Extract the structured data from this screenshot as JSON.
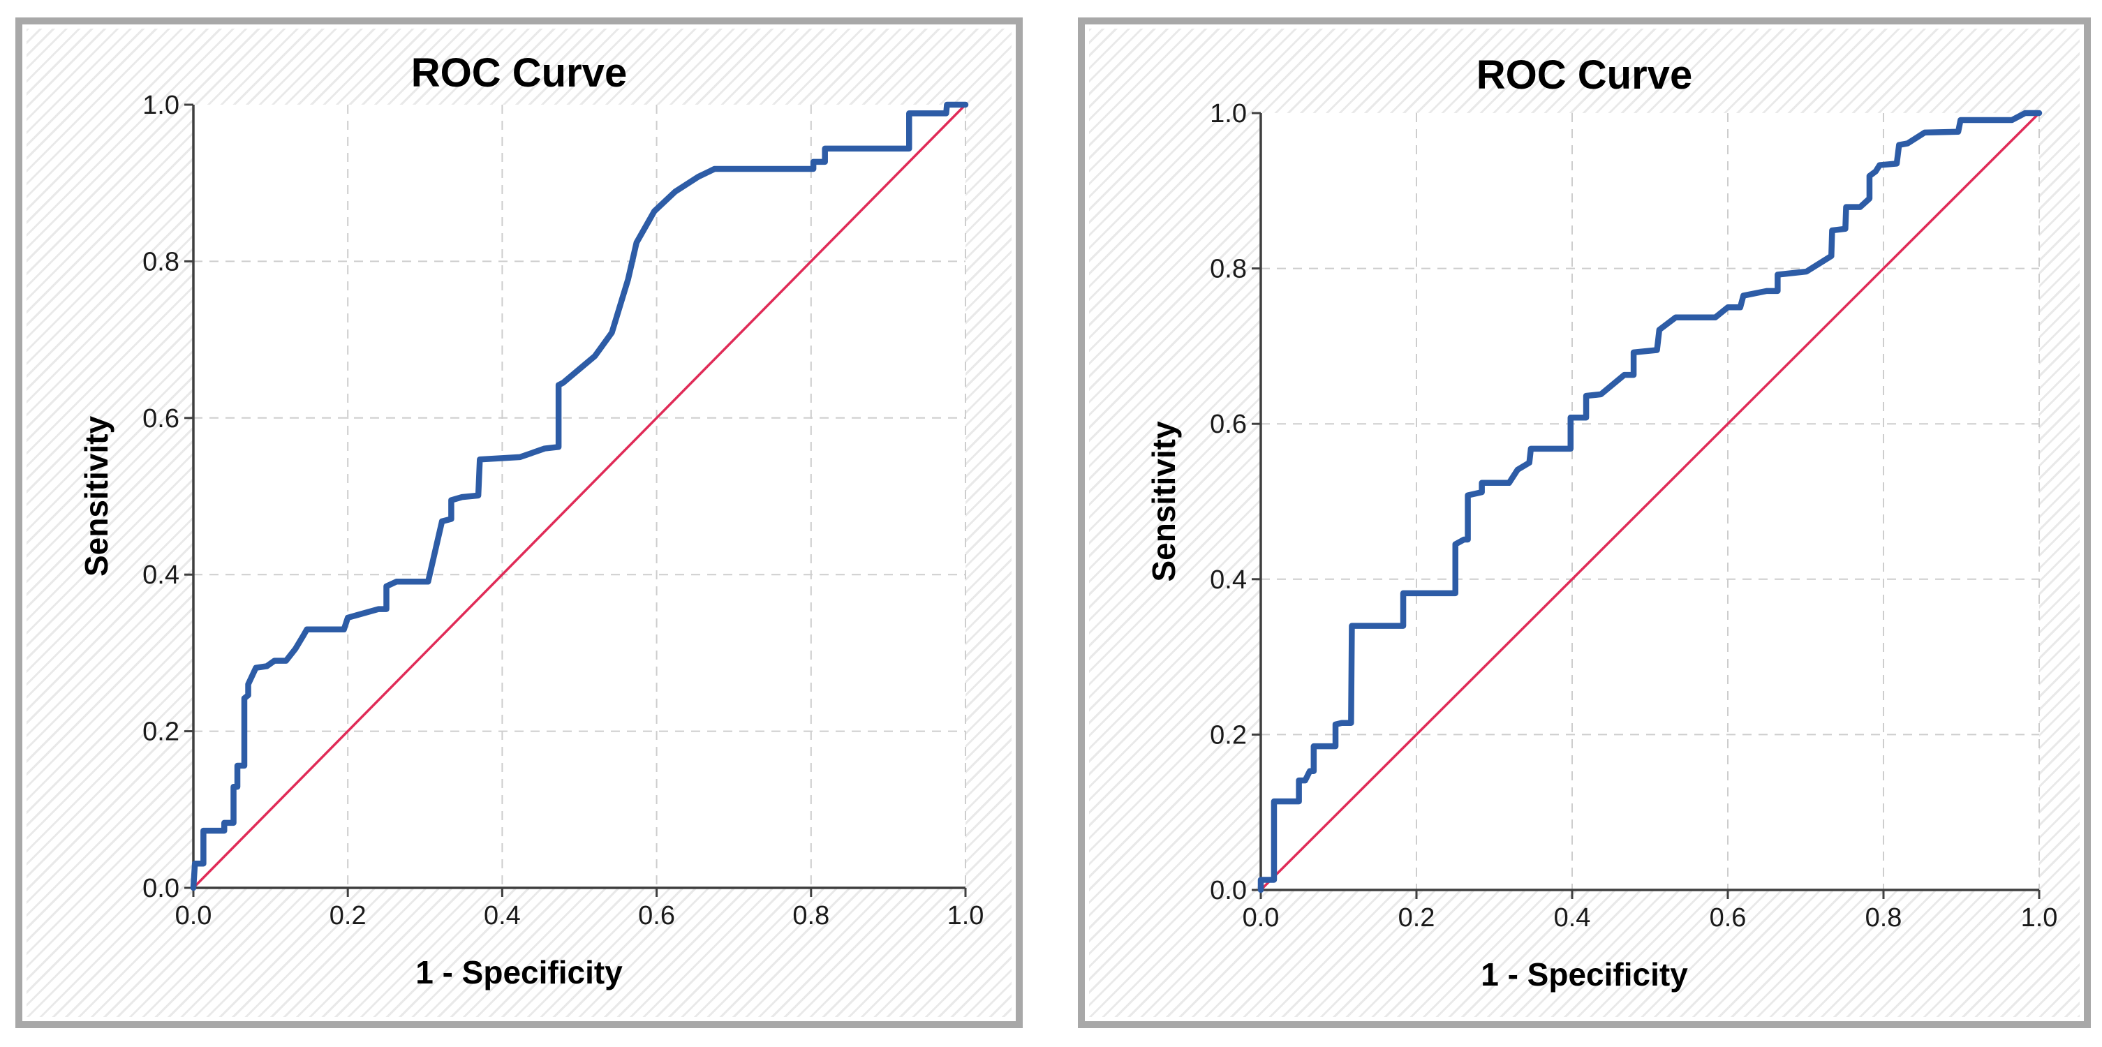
{
  "page": {
    "background": "#ffffff",
    "description_left_title": "ROC Curve",
    "description_right_title": "ROC Curve"
  },
  "colors": {
    "roc_curve_blue": "#2D5CA6",
    "reference_line_red": "#E02B57",
    "grid_dashed_gray": "#CDCDCD",
    "axis_dark_gray": "#3F3F3F",
    "frame_gray": "#A8A8A8",
    "hatch_light_gray": "#E9E9E9",
    "plot_background": "#FFFFFF"
  },
  "chart_data": [
    {
      "type": "line",
      "subtype": "roc",
      "title": "ROC Curve",
      "xlabel": "1 - Specificity",
      "ylabel": "Sensitivity",
      "xlim": [
        0.0,
        1.0
      ],
      "ylim": [
        0.0,
        1.0
      ],
      "xtick_labels": [
        "0.0",
        "0.2",
        "0.4",
        "0.6",
        "0.8",
        "1.0"
      ],
      "ytick_labels": [
        "0.0",
        "0.2",
        "0.4",
        "0.6",
        "0.8",
        "1.0"
      ],
      "grid": "dashed",
      "legend": "none",
      "series": [
        {
          "name": "ROC curve",
          "color": "#2D5CA6",
          "points": [
            [
              0,
              0
            ],
            [
              0.002,
              0.031
            ],
            [
              0.013,
              0.031
            ],
            [
              0.013,
              0.073
            ],
            [
              0.04,
              0.073
            ],
            [
              0.04,
              0.083
            ],
            [
              0.052,
              0.083
            ],
            [
              0.052,
              0.129
            ],
            [
              0.057,
              0.129
            ],
            [
              0.057,
              0.156
            ],
            [
              0.066,
              0.156
            ],
            [
              0.066,
              0.242
            ],
            [
              0.071,
              0.246
            ],
            [
              0.071,
              0.26
            ],
            [
              0.081,
              0.281
            ],
            [
              0.095,
              0.283
            ],
            [
              0.105,
              0.29
            ],
            [
              0.12,
              0.29
            ],
            [
              0.132,
              0.305
            ],
            [
              0.143,
              0.323
            ],
            [
              0.147,
              0.33
            ],
            [
              0.195,
              0.33
            ],
            [
              0.2,
              0.345
            ],
            [
              0.24,
              0.356
            ],
            [
              0.25,
              0.356
            ],
            [
              0.25,
              0.385
            ],
            [
              0.263,
              0.391
            ],
            [
              0.304,
              0.391
            ],
            [
              0.322,
              0.468
            ],
            [
              0.334,
              0.471
            ],
            [
              0.334,
              0.495
            ],
            [
              0.348,
              0.499
            ],
            [
              0.369,
              0.501
            ],
            [
              0.371,
              0.547
            ],
            [
              0.423,
              0.55
            ],
            [
              0.455,
              0.561
            ],
            [
              0.473,
              0.563
            ],
            [
              0.473,
              0.642
            ],
            [
              0.479,
              0.645
            ],
            [
              0.52,
              0.679
            ],
            [
              0.542,
              0.709
            ],
            [
              0.563,
              0.777
            ],
            [
              0.574,
              0.824
            ],
            [
              0.597,
              0.864
            ],
            [
              0.624,
              0.889
            ],
            [
              0.654,
              0.908
            ],
            [
              0.675,
              0.918
            ],
            [
              0.803,
              0.918
            ],
            [
              0.803,
              0.927
            ],
            [
              0.818,
              0.927
            ],
            [
              0.818,
              0.944
            ],
            [
              0.927,
              0.944
            ],
            [
              0.927,
              0.989
            ],
            [
              0.975,
              0.989
            ],
            [
              0.976,
              1
            ],
            [
              1,
              1
            ]
          ]
        },
        {
          "name": "Reference line",
          "color": "#E02B57",
          "points": [
            [
              0,
              0
            ],
            [
              1,
              1
            ]
          ]
        }
      ]
    },
    {
      "type": "line",
      "subtype": "roc",
      "title": "ROC Curve",
      "xlabel": "1 - Specificity",
      "ylabel": "Sensitivity",
      "xlim": [
        0.0,
        1.0
      ],
      "ylim": [
        0.0,
        1.0
      ],
      "xtick_labels": [
        "0.0",
        "0.2",
        "0.4",
        "0.6",
        "0.8",
        "1.0"
      ],
      "ytick_labels": [
        "0.0",
        "0.2",
        "0.4",
        "0.6",
        "0.8",
        "1.0"
      ],
      "grid": "dashed",
      "legend": "none",
      "series": [
        {
          "name": "ROC curve",
          "color": "#2D5CA6",
          "points": [
            [
              0,
              0
            ],
            [
              0,
              0.013
            ],
            [
              0.017,
              0.013
            ],
            [
              0.017,
              0.114
            ],
            [
              0.049,
              0.114
            ],
            [
              0.049,
              0.141
            ],
            [
              0.057,
              0.141
            ],
            [
              0.063,
              0.153
            ],
            [
              0.068,
              0.153
            ],
            [
              0.068,
              0.185
            ],
            [
              0.096,
              0.185
            ],
            [
              0.096,
              0.213
            ],
            [
              0.104,
              0.215
            ],
            [
              0.116,
              0.215
            ],
            [
              0.117,
              0.34
            ],
            [
              0.183,
              0.34
            ],
            [
              0.183,
              0.382
            ],
            [
              0.25,
              0.382
            ],
            [
              0.25,
              0.445
            ],
            [
              0.261,
              0.451
            ],
            [
              0.266,
              0.451
            ],
            [
              0.266,
              0.508
            ],
            [
              0.284,
              0.512
            ],
            [
              0.284,
              0.524
            ],
            [
              0.319,
              0.524
            ],
            [
              0.33,
              0.541
            ],
            [
              0.345,
              0.55
            ],
            [
              0.347,
              0.568
            ],
            [
              0.398,
              0.568
            ],
            [
              0.398,
              0.608
            ],
            [
              0.418,
              0.608
            ],
            [
              0.418,
              0.636
            ],
            [
              0.437,
              0.638
            ],
            [
              0.467,
              0.663
            ],
            [
              0.479,
              0.663
            ],
            [
              0.479,
              0.692
            ],
            [
              0.509,
              0.695
            ],
            [
              0.512,
              0.721
            ],
            [
              0.533,
              0.737
            ],
            [
              0.584,
              0.737
            ],
            [
              0.6,
              0.75
            ],
            [
              0.616,
              0.75
            ],
            [
              0.62,
              0.765
            ],
            [
              0.65,
              0.771
            ],
            [
              0.664,
              0.771
            ],
            [
              0.664,
              0.792
            ],
            [
              0.701,
              0.796
            ],
            [
              0.733,
              0.816
            ],
            [
              0.734,
              0.849
            ],
            [
              0.751,
              0.851
            ],
            [
              0.752,
              0.879
            ],
            [
              0.77,
              0.879
            ],
            [
              0.782,
              0.89
            ],
            [
              0.782,
              0.919
            ],
            [
              0.79,
              0.925
            ],
            [
              0.795,
              0.933
            ],
            [
              0.817,
              0.935
            ],
            [
              0.82,
              0.959
            ],
            [
              0.831,
              0.961
            ],
            [
              0.853,
              0.975
            ],
            [
              0.896,
              0.976
            ],
            [
              0.899,
              0.991
            ],
            [
              0.965,
              0.991
            ],
            [
              0.982,
              1
            ],
            [
              1,
              1
            ]
          ]
        },
        {
          "name": "Reference line",
          "color": "#E02B57",
          "points": [
            [
              0,
              0
            ],
            [
              1,
              1
            ]
          ]
        }
      ]
    }
  ]
}
